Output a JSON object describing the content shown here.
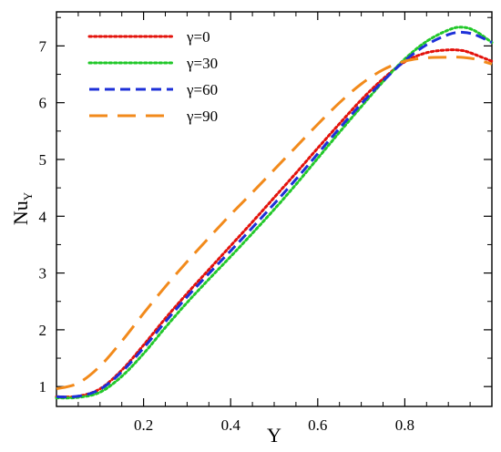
{
  "chart_data": {
    "type": "line",
    "xlabel": "Y",
    "ylabel_main": "Nu",
    "ylabel_sub": "Y",
    "xlim": [
      0.0,
      1.0
    ],
    "ylim": [
      0.65,
      7.6
    ],
    "x_ticks": [
      0.2,
      0.4,
      0.6,
      0.8
    ],
    "x_tick_labels": [
      "0.2",
      "0.4",
      "0.6",
      "0.8"
    ],
    "y_ticks": [
      1,
      2,
      3,
      4,
      5,
      6,
      7
    ],
    "y_tick_labels": [
      "1",
      "2",
      "3",
      "4",
      "5",
      "6",
      "7"
    ],
    "legend_position": "top-left",
    "grid": false,
    "series": [
      {
        "name": "γ=0",
        "color": "#e3120b",
        "style": "dotted",
        "x": [
          0.0,
          0.05,
          0.1,
          0.15,
          0.2,
          0.25,
          0.3,
          0.35,
          0.4,
          0.45,
          0.5,
          0.55,
          0.6,
          0.65,
          0.7,
          0.75,
          0.8,
          0.85,
          0.9,
          0.93,
          0.95,
          1.0
        ],
        "y": [
          0.82,
          0.83,
          0.96,
          1.29,
          1.73,
          2.2,
          2.64,
          3.06,
          3.48,
          3.9,
          4.33,
          4.76,
          5.2,
          5.63,
          6.05,
          6.42,
          6.72,
          6.88,
          6.93,
          6.92,
          6.88,
          6.73
        ]
      },
      {
        "name": "γ=30",
        "color": "#22c82a",
        "style": "dotted",
        "x": [
          0.0,
          0.05,
          0.1,
          0.15,
          0.2,
          0.25,
          0.3,
          0.35,
          0.4,
          0.45,
          0.5,
          0.55,
          0.6,
          0.65,
          0.7,
          0.75,
          0.8,
          0.85,
          0.9,
          0.93,
          0.96,
          1.0
        ],
        "y": [
          0.8,
          0.81,
          0.9,
          1.18,
          1.58,
          2.04,
          2.48,
          2.89,
          3.29,
          3.7,
          4.12,
          4.56,
          5.02,
          5.48,
          5.93,
          6.37,
          6.77,
          7.08,
          7.28,
          7.33,
          7.27,
          7.06
        ]
      },
      {
        "name": "γ=60",
        "color": "#1d30d8",
        "style": "dashed",
        "x": [
          0.0,
          0.05,
          0.1,
          0.15,
          0.2,
          0.25,
          0.3,
          0.35,
          0.4,
          0.45,
          0.5,
          0.55,
          0.6,
          0.65,
          0.7,
          0.75,
          0.8,
          0.85,
          0.9,
          0.93,
          0.96,
          1.0
        ],
        "y": [
          0.82,
          0.83,
          0.95,
          1.26,
          1.68,
          2.14,
          2.58,
          2.99,
          3.39,
          3.8,
          4.22,
          4.65,
          5.1,
          5.55,
          5.98,
          6.38,
          6.74,
          7.02,
          7.2,
          7.24,
          7.2,
          7.06
        ]
      },
      {
        "name": "γ=90",
        "color": "#f28a1b",
        "style": "longdash",
        "x": [
          0.0,
          0.05,
          0.1,
          0.15,
          0.2,
          0.25,
          0.3,
          0.35,
          0.4,
          0.45,
          0.5,
          0.55,
          0.6,
          0.65,
          0.7,
          0.75,
          0.8,
          0.85,
          0.9,
          0.93,
          0.96,
          1.0
        ],
        "y": [
          0.96,
          1.06,
          1.36,
          1.8,
          2.29,
          2.76,
          3.2,
          3.62,
          4.03,
          4.42,
          4.82,
          5.22,
          5.62,
          6.0,
          6.33,
          6.58,
          6.73,
          6.79,
          6.8,
          6.8,
          6.77,
          6.68
        ]
      }
    ]
  }
}
